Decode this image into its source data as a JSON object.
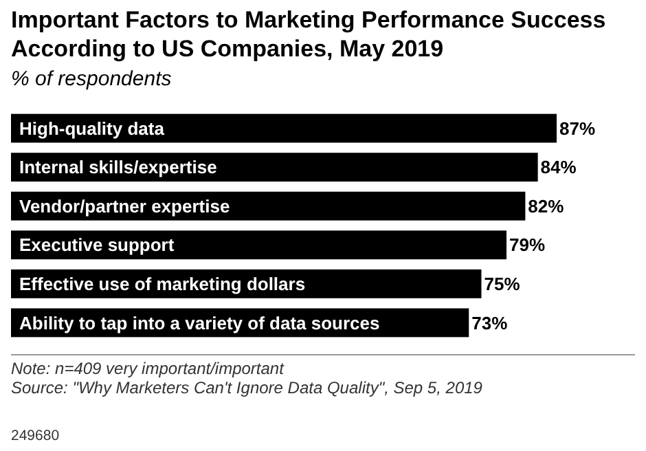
{
  "chart_data": {
    "type": "bar",
    "orientation": "horizontal",
    "title": "Important Factors to Marketing Performance Success According to US Companies, May 2019",
    "subtitle": "% of respondents",
    "categories": [
      "High-quality data",
      "Internal skills/expertise",
      "Vendor/partner expertise",
      "Executive support",
      "Effective use of marketing dollars",
      "Ability to tap into a variety of data sources"
    ],
    "values": [
      87,
      84,
      82,
      79,
      75,
      73
    ],
    "color": "#000000",
    "data_labels": true,
    "value_labels": [
      "87%",
      "84%",
      "82%",
      "79%",
      "75%",
      "73%"
    ],
    "annotations": [
      "Note: n=409 very important/important",
      "Source: \"Why Marketers Can't Ignore Data Quality\", Sep 5, 2019",
      "249680"
    ]
  }
}
